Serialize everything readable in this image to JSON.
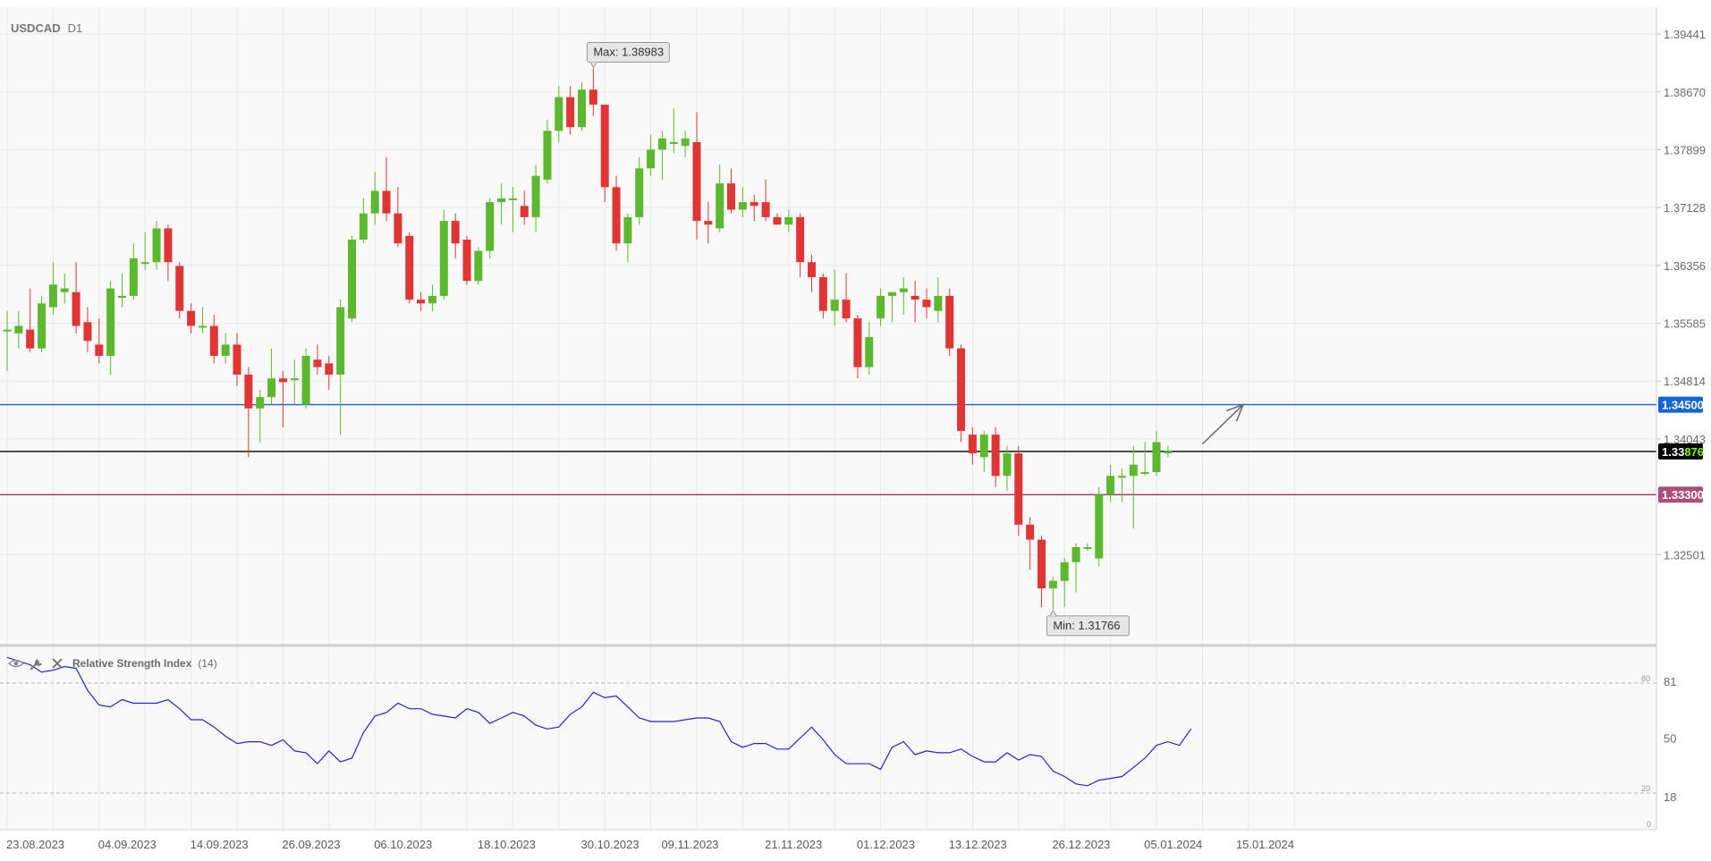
{
  "chart_data": {
    "type": "candlestick",
    "symbol": "USDCAD",
    "timeframe": "D1",
    "price_axis": {
      "range": [
        1.313,
        1.398
      ],
      "ticks": [
        1.39441,
        1.3867,
        1.37899,
        1.37128,
        1.36356,
        1.35585,
        1.34814,
        1.34043,
        1.32501
      ],
      "tick_labels": [
        "1.39441",
        "1.38670",
        "1.37899",
        "1.37128",
        "1.36356",
        "1.35585",
        "1.34814",
        "1.34043",
        "1.32501"
      ]
    },
    "date_axis": {
      "labels": [
        "23.08.2023",
        "04.09.2023",
        "14.09.2023",
        "26.09.2023",
        "06.10.2023",
        "18.10.2023",
        "30.10.2023",
        "09.11.2023",
        "21.11.2023",
        "01.12.2023",
        "13.12.2023",
        "26.12.2023",
        "05.01.2024",
        "15.01.2024"
      ],
      "label_bar_index": [
        0,
        8,
        16,
        24,
        32,
        41,
        50,
        57,
        66,
        74,
        82,
        91,
        99,
        107
      ]
    },
    "candles": [
      {
        "o": 1.355,
        "h": 1.3575,
        "l": 1.3495,
        "c": 1.355
      },
      {
        "o": 1.3545,
        "h": 1.3575,
        "l": 1.3525,
        "c": 1.3555
      },
      {
        "o": 1.355,
        "h": 1.3605,
        "l": 1.352,
        "c": 1.3525
      },
      {
        "o": 1.3525,
        "h": 1.3595,
        "l": 1.352,
        "c": 1.3585
      },
      {
        "o": 1.358,
        "h": 1.364,
        "l": 1.357,
        "c": 1.361
      },
      {
        "o": 1.36,
        "h": 1.3625,
        "l": 1.3585,
        "c": 1.3605
      },
      {
        "o": 1.36,
        "h": 1.364,
        "l": 1.3545,
        "c": 1.3555
      },
      {
        "o": 1.356,
        "h": 1.358,
        "l": 1.352,
        "c": 1.3535
      },
      {
        "o": 1.353,
        "h": 1.3565,
        "l": 1.3505,
        "c": 1.3515
      },
      {
        "o": 1.3515,
        "h": 1.3615,
        "l": 1.349,
        "c": 1.3605
      },
      {
        "o": 1.3595,
        "h": 1.3625,
        "l": 1.358,
        "c": 1.3595
      },
      {
        "o": 1.3595,
        "h": 1.3665,
        "l": 1.359,
        "c": 1.3645
      },
      {
        "o": 1.364,
        "h": 1.368,
        "l": 1.363,
        "c": 1.364
      },
      {
        "o": 1.364,
        "h": 1.3695,
        "l": 1.363,
        "c": 1.3685
      },
      {
        "o": 1.3685,
        "h": 1.369,
        "l": 1.3615,
        "c": 1.364
      },
      {
        "o": 1.3635,
        "h": 1.364,
        "l": 1.3565,
        "c": 1.3575
      },
      {
        "o": 1.3575,
        "h": 1.3585,
        "l": 1.3545,
        "c": 1.3555
      },
      {
        "o": 1.3555,
        "h": 1.358,
        "l": 1.3545,
        "c": 1.3555
      },
      {
        "o": 1.3555,
        "h": 1.357,
        "l": 1.3505,
        "c": 1.3515
      },
      {
        "o": 1.3515,
        "h": 1.3545,
        "l": 1.3505,
        "c": 1.353
      },
      {
        "o": 1.353,
        "h": 1.3545,
        "l": 1.3475,
        "c": 1.349
      },
      {
        "o": 1.349,
        "h": 1.35,
        "l": 1.338,
        "c": 1.3445
      },
      {
        "o": 1.3445,
        "h": 1.347,
        "l": 1.34,
        "c": 1.346
      },
      {
        "o": 1.346,
        "h": 1.3525,
        "l": 1.345,
        "c": 1.3485
      },
      {
        "o": 1.3485,
        "h": 1.3495,
        "l": 1.342,
        "c": 1.348
      },
      {
        "o": 1.3485,
        "h": 1.351,
        "l": 1.345,
        "c": 1.3485
      },
      {
        "o": 1.345,
        "h": 1.3525,
        "l": 1.3445,
        "c": 1.3515
      },
      {
        "o": 1.351,
        "h": 1.353,
        "l": 1.349,
        "c": 1.35
      },
      {
        "o": 1.3505,
        "h": 1.3515,
        "l": 1.347,
        "c": 1.349
      },
      {
        "o": 1.349,
        "h": 1.359,
        "l": 1.341,
        "c": 1.358
      },
      {
        "o": 1.3565,
        "h": 1.3675,
        "l": 1.356,
        "c": 1.367
      },
      {
        "o": 1.367,
        "h": 1.3725,
        "l": 1.3665,
        "c": 1.3705
      },
      {
        "o": 1.3705,
        "h": 1.376,
        "l": 1.369,
        "c": 1.3735
      },
      {
        "o": 1.3735,
        "h": 1.378,
        "l": 1.3695,
        "c": 1.3705
      },
      {
        "o": 1.3705,
        "h": 1.374,
        "l": 1.366,
        "c": 1.3665
      },
      {
        "o": 1.3675,
        "h": 1.368,
        "l": 1.3585,
        "c": 1.359
      },
      {
        "o": 1.359,
        "h": 1.36,
        "l": 1.3575,
        "c": 1.3585
      },
      {
        "o": 1.3585,
        "h": 1.361,
        "l": 1.3575,
        "c": 1.3595
      },
      {
        "o": 1.3595,
        "h": 1.371,
        "l": 1.359,
        "c": 1.3695
      },
      {
        "o": 1.3695,
        "h": 1.3705,
        "l": 1.3645,
        "c": 1.3665
      },
      {
        "o": 1.367,
        "h": 1.3675,
        "l": 1.361,
        "c": 1.3615
      },
      {
        "o": 1.3615,
        "h": 1.366,
        "l": 1.361,
        "c": 1.3655
      },
      {
        "o": 1.3655,
        "h": 1.3725,
        "l": 1.3645,
        "c": 1.372
      },
      {
        "o": 1.372,
        "h": 1.3745,
        "l": 1.369,
        "c": 1.3725
      },
      {
        "o": 1.3725,
        "h": 1.374,
        "l": 1.368,
        "c": 1.3725
      },
      {
        "o": 1.3715,
        "h": 1.3735,
        "l": 1.369,
        "c": 1.37
      },
      {
        "o": 1.37,
        "h": 1.377,
        "l": 1.368,
        "c": 1.3755
      },
      {
        "o": 1.375,
        "h": 1.383,
        "l": 1.3745,
        "c": 1.3815
      },
      {
        "o": 1.3815,
        "h": 1.3875,
        "l": 1.38,
        "c": 1.386
      },
      {
        "o": 1.386,
        "h": 1.3875,
        "l": 1.381,
        "c": 1.382
      },
      {
        "o": 1.382,
        "h": 1.388,
        "l": 1.3815,
        "c": 1.387
      },
      {
        "o": 1.387,
        "h": 1.3898,
        "l": 1.3835,
        "c": 1.385
      },
      {
        "o": 1.385,
        "h": 1.385,
        "l": 1.372,
        "c": 1.374
      },
      {
        "o": 1.374,
        "h": 1.3755,
        "l": 1.3655,
        "c": 1.3665
      },
      {
        "o": 1.3665,
        "h": 1.3705,
        "l": 1.364,
        "c": 1.37
      },
      {
        "o": 1.37,
        "h": 1.378,
        "l": 1.369,
        "c": 1.3765
      },
      {
        "o": 1.3765,
        "h": 1.381,
        "l": 1.3755,
        "c": 1.379
      },
      {
        "o": 1.379,
        "h": 1.3815,
        "l": 1.375,
        "c": 1.3805
      },
      {
        "o": 1.38,
        "h": 1.3845,
        "l": 1.3785,
        "c": 1.38
      },
      {
        "o": 1.3795,
        "h": 1.3815,
        "l": 1.378,
        "c": 1.3805
      },
      {
        "o": 1.38,
        "h": 1.384,
        "l": 1.367,
        "c": 1.3695
      },
      {
        "o": 1.3695,
        "h": 1.372,
        "l": 1.3665,
        "c": 1.369
      },
      {
        "o": 1.3685,
        "h": 1.377,
        "l": 1.368,
        "c": 1.3745
      },
      {
        "o": 1.3745,
        "h": 1.3765,
        "l": 1.3705,
        "c": 1.371
      },
      {
        "o": 1.371,
        "h": 1.374,
        "l": 1.37,
        "c": 1.372
      },
      {
        "o": 1.372,
        "h": 1.373,
        "l": 1.3695,
        "c": 1.3715
      },
      {
        "o": 1.372,
        "h": 1.375,
        "l": 1.3695,
        "c": 1.37
      },
      {
        "o": 1.37,
        "h": 1.3705,
        "l": 1.369,
        "c": 1.369
      },
      {
        "o": 1.369,
        "h": 1.371,
        "l": 1.368,
        "c": 1.37
      },
      {
        "o": 1.37,
        "h": 1.3705,
        "l": 1.362,
        "c": 1.364
      },
      {
        "o": 1.364,
        "h": 1.365,
        "l": 1.36,
        "c": 1.362
      },
      {
        "o": 1.362,
        "h": 1.3625,
        "l": 1.3565,
        "c": 1.3575
      },
      {
        "o": 1.3575,
        "h": 1.363,
        "l": 1.3555,
        "c": 1.359
      },
      {
        "o": 1.359,
        "h": 1.3625,
        "l": 1.356,
        "c": 1.3565
      },
      {
        "o": 1.3565,
        "h": 1.357,
        "l": 1.3485,
        "c": 1.35
      },
      {
        "o": 1.35,
        "h": 1.356,
        "l": 1.349,
        "c": 1.354
      },
      {
        "o": 1.3565,
        "h": 1.3605,
        "l": 1.3555,
        "c": 1.3595
      },
      {
        "o": 1.3595,
        "h": 1.36,
        "l": 1.356,
        "c": 1.36
      },
      {
        "o": 1.36,
        "h": 1.362,
        "l": 1.357,
        "c": 1.3605
      },
      {
        "o": 1.3595,
        "h": 1.3615,
        "l": 1.356,
        "c": 1.359
      },
      {
        "o": 1.359,
        "h": 1.3605,
        "l": 1.3565,
        "c": 1.358
      },
      {
        "o": 1.3575,
        "h": 1.362,
        "l": 1.356,
        "c": 1.3595
      },
      {
        "o": 1.3595,
        "h": 1.3605,
        "l": 1.3515,
        "c": 1.3525
      },
      {
        "o": 1.3525,
        "h": 1.353,
        "l": 1.34,
        "c": 1.3415
      },
      {
        "o": 1.341,
        "h": 1.342,
        "l": 1.337,
        "c": 1.3385
      },
      {
        "o": 1.338,
        "h": 1.3415,
        "l": 1.336,
        "c": 1.341
      },
      {
        "o": 1.341,
        "h": 1.342,
        "l": 1.334,
        "c": 1.3355
      },
      {
        "o": 1.3355,
        "h": 1.3395,
        "l": 1.3335,
        "c": 1.3385
      },
      {
        "o": 1.3385,
        "h": 1.3395,
        "l": 1.3275,
        "c": 1.329
      },
      {
        "o": 1.329,
        "h": 1.33,
        "l": 1.323,
        "c": 1.327
      },
      {
        "o": 1.327,
        "h": 1.3275,
        "l": 1.318,
        "c": 1.3205
      },
      {
        "o": 1.3205,
        "h": 1.322,
        "l": 1.3177,
        "c": 1.3215
      },
      {
        "o": 1.3215,
        "h": 1.3245,
        "l": 1.318,
        "c": 1.324
      },
      {
        "o": 1.324,
        "h": 1.3265,
        "l": 1.32,
        "c": 1.326
      },
      {
        "o": 1.326,
        "h": 1.3265,
        "l": 1.3255,
        "c": 1.326
      },
      {
        "o": 1.3245,
        "h": 1.334,
        "l": 1.3235,
        "c": 1.333
      },
      {
        "o": 1.333,
        "h": 1.337,
        "l": 1.332,
        "c": 1.3355
      },
      {
        "o": 1.3355,
        "h": 1.3365,
        "l": 1.332,
        "c": 1.3355
      },
      {
        "o": 1.3355,
        "h": 1.3395,
        "l": 1.3285,
        "c": 1.337
      },
      {
        "o": 1.336,
        "h": 1.34,
        "l": 1.3355,
        "c": 1.336
      },
      {
        "o": 1.336,
        "h": 1.3415,
        "l": 1.3355,
        "c": 1.34
      },
      {
        "o": 1.3385,
        "h": 1.3395,
        "l": 1.338,
        "c": 1.3388
      }
    ],
    "horizontal_levels": [
      {
        "name": "resistance",
        "value": 1.345,
        "label": "1.34500",
        "color": "#1565d8"
      },
      {
        "name": "current",
        "value": 1.33876,
        "label_main": "1.33",
        "label_highlight": "876",
        "color": "#000000",
        "highlight_color": "#7CFC00"
      },
      {
        "name": "support",
        "value": 1.333,
        "label": "1.33300",
        "color": "#a01850",
        "tag_color": "#a8507a"
      }
    ],
    "max_annotation": {
      "text": "Max: 1.38983",
      "bar_index": 51,
      "value": 1.38983
    },
    "min_annotation": {
      "text": "Min: 1.31766",
      "bar_index": 91,
      "value": 1.31766
    },
    "arrow": {
      "from": {
        "bar_index": 104,
        "value": 1.33975
      },
      "to": {
        "bar_index": 107,
        "value": 1.345
      }
    },
    "colors": {
      "bull": "#5cb82e",
      "bear": "#df3535",
      "rsi_line": "#2222dd",
      "grid": "#e9e9e9"
    },
    "rsi": {
      "title": "Relative Strength Index",
      "period": "(14)",
      "range": [
        0,
        100
      ],
      "axis_ticks": [
        81,
        50,
        18
      ],
      "axis_tick_labels": [
        "81",
        "50",
        "18"
      ],
      "levels": [
        80,
        20
      ],
      "level_labels": [
        "80",
        "20"
      ],
      "zero_label": "0",
      "values": [
        94,
        92,
        90,
        86,
        87,
        89,
        88,
        76,
        68,
        67,
        71,
        69,
        69,
        69,
        71,
        66,
        60,
        60,
        56,
        51,
        47,
        48,
        48,
        46,
        49,
        43,
        42,
        36,
        43,
        37,
        39,
        53,
        62,
        64,
        69,
        66,
        66,
        63,
        62,
        61,
        66,
        64,
        58,
        61,
        64,
        62,
        57,
        55,
        56,
        63,
        67,
        75,
        72,
        73,
        67,
        61,
        59,
        59,
        59,
        60,
        61,
        61,
        59,
        48,
        45,
        47,
        47,
        44,
        44,
        50,
        56,
        49,
        41,
        36,
        36,
        36,
        33,
        45,
        48,
        41,
        43,
        42,
        42,
        44,
        40,
        37,
        37,
        42,
        38,
        41,
        40,
        32,
        29,
        25,
        24,
        27,
        28,
        29,
        34,
        39,
        46,
        48,
        46,
        55
      ]
    }
  },
  "ui": {
    "rsi_icons": [
      "eye-icon",
      "wrench-icon",
      "close-icon"
    ]
  }
}
